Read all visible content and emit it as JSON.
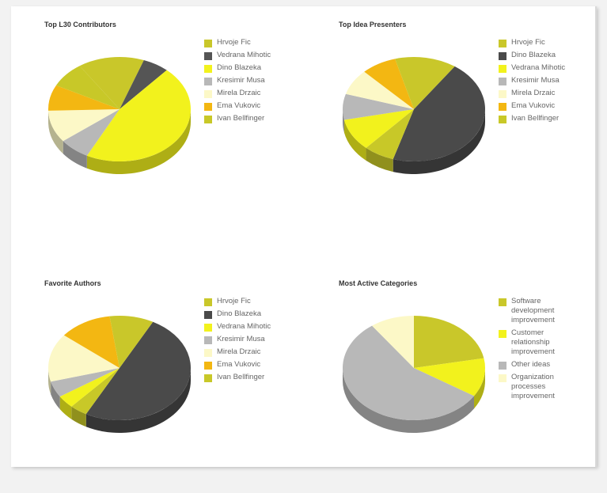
{
  "chart_data": [
    {
      "type": "pie",
      "title": "Top L30 Contributors",
      "start_angle": -70,
      "labels": [
        "Hrvoje Fic",
        "Vedrana Mihotic",
        "Dino Blazeka",
        "Kresimir Musa",
        "Mirela Drzaic",
        "Ema Vukovic",
        "Ivan Bellfinger"
      ],
      "values": [
        15,
        6,
        46,
        7,
        10,
        8,
        8
      ],
      "colors": [
        "#c9c72a",
        "#555555",
        "#f2f21d",
        "#b8b8b8",
        "#fcf8c7",
        "#f3b712",
        "#c8c828"
      ],
      "slice_order": [
        1,
        2,
        3,
        4,
        5,
        6,
        0
      ]
    },
    {
      "type": "pie",
      "title": "Top Idea Presenters",
      "start_angle": -55,
      "labels": [
        "Hrvoje Fic",
        "Dino Blazeka",
        "Vedrana Mihotic",
        "Kresimir Musa",
        "Mirela Drzaic",
        "Ema Vukovic",
        "Ivan Bellfinger"
      ],
      "values": [
        14,
        45,
        10,
        8,
        8,
        8,
        7
      ],
      "colors": [
        "#c9c72a",
        "#4a4a4a",
        "#f2f21d",
        "#b8b8b8",
        "#fcf8c7",
        "#f3b712",
        "#c8c828"
      ],
      "slice_order": [
        1,
        6,
        2,
        3,
        4,
        5,
        0
      ]
    },
    {
      "type": "pie",
      "title": "Favorite Authors",
      "start_angle": -62,
      "labels": [
        "Hrvoje Fic",
        "Dino Blazeka",
        "Vedrana Mihotic",
        "Kresimir Musa",
        "Mirela Drzaic",
        "Ema Vukovic",
        "Ivan Bellfinger"
      ],
      "values": [
        10,
        50,
        4,
        5,
        15,
        12,
        4
      ],
      "colors": [
        "#c9c72a",
        "#4a4a4a",
        "#f2f21d",
        "#b8b8b8",
        "#fcf8c7",
        "#f3b712",
        "#c8c828"
      ],
      "slice_order": [
        1,
        6,
        2,
        3,
        4,
        5,
        0
      ]
    },
    {
      "type": "pie",
      "title": "Most Active Categories",
      "start_angle": -90,
      "labels": [
        "Software development improvement",
        "Customer relationship improvement",
        "Other ideas",
        "Organization processes improvement"
      ],
      "values": [
        22,
        12,
        56,
        10
      ],
      "colors": [
        "#c9c72a",
        "#f2f21d",
        "#b8b8b8",
        "#fcf8c7"
      ],
      "slice_order": [
        0,
        1,
        2,
        3
      ]
    }
  ]
}
